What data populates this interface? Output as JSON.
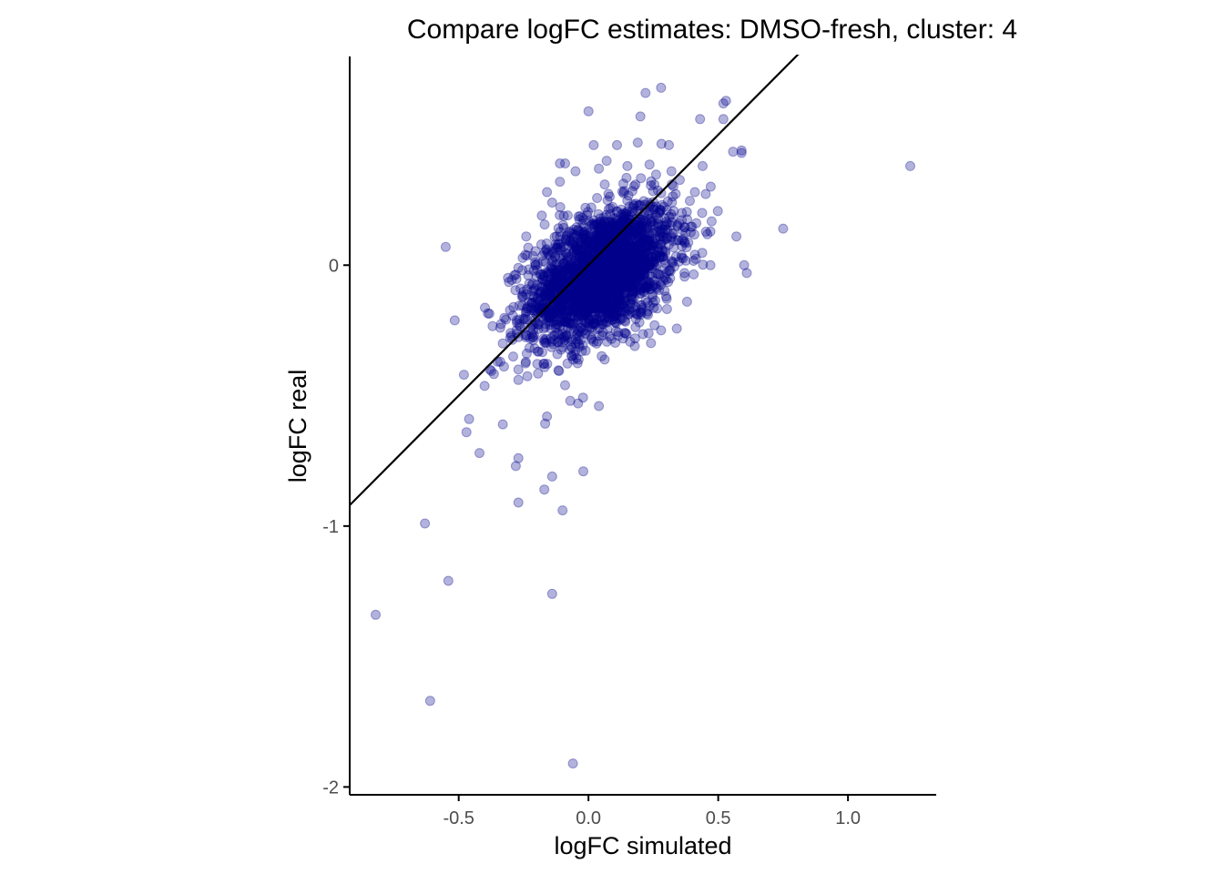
{
  "chart_data": {
    "type": "scatter",
    "title": "Compare logFC estimates: DMSO-fresh, cluster: 4",
    "xlabel": "logFC simulated",
    "ylabel": "logFC real",
    "xlim": [
      -0.92,
      1.34
    ],
    "ylim": [
      -2.03,
      0.8
    ],
    "x_ticks": [
      {
        "value": -0.5,
        "label": "-0.5"
      },
      {
        "value": 0.0,
        "label": "0.0"
      },
      {
        "value": 0.5,
        "label": "0.5"
      },
      {
        "value": 1.0,
        "label": "1.0"
      }
    ],
    "y_ticks": [
      {
        "value": -2,
        "label": "-2"
      },
      {
        "value": -1,
        "label": "-1"
      },
      {
        "value": 0,
        "label": "0"
      }
    ],
    "grid": false,
    "reference_line": {
      "type": "identity",
      "slope": 1,
      "intercept": 0
    },
    "point_color": "#00008B",
    "point_alpha": 0.3,
    "line_color": "#000000",
    "dense_cluster": {
      "center": [
        0.05,
        -0.03
      ],
      "sd": [
        0.14,
        0.13
      ],
      "correlation": 0.45,
      "n": 2500
    },
    "points": [
      [
        1.24,
        0.38
      ],
      [
        0.75,
        0.14
      ],
      [
        0.59,
        0.44
      ],
      [
        0.59,
        0.43
      ],
      [
        0.52,
        0.62
      ],
      [
        0.53,
        0.63
      ],
      [
        0.52,
        0.56
      ],
      [
        0.43,
        0.56
      ],
      [
        0.6,
        0.0
      ],
      [
        0.61,
        -0.03
      ],
      [
        0.57,
        0.11
      ],
      [
        0.47,
        0.0
      ],
      [
        0.38,
        -0.14
      ],
      [
        0.28,
        0.68
      ],
      [
        0.22,
        0.66
      ],
      [
        0.2,
        0.57
      ],
      [
        0.0,
        0.59
      ],
      [
        0.31,
        0.46
      ],
      [
        0.02,
        0.46
      ],
      [
        0.11,
        0.46
      ],
      [
        0.19,
        0.47
      ],
      [
        -0.09,
        0.39
      ],
      [
        -0.55,
        0.07
      ],
      [
        -0.48,
        -0.42
      ],
      [
        -0.46,
        -0.59
      ],
      [
        -0.47,
        -0.64
      ],
      [
        -0.42,
        -0.72
      ],
      [
        -0.33,
        -0.61
      ],
      [
        -0.28,
        -0.77
      ],
      [
        -0.27,
        -0.74
      ],
      [
        -0.27,
        -0.91
      ],
      [
        -0.17,
        -0.86
      ],
      [
        -0.14,
        -0.81
      ],
      [
        -0.1,
        -0.94
      ],
      [
        -0.02,
        -0.79
      ],
      [
        -0.16,
        -0.58
      ],
      [
        -0.63,
        -0.99
      ],
      [
        -0.54,
        -1.21
      ],
      [
        -0.82,
        -1.34
      ],
      [
        -0.61,
        -1.67
      ],
      [
        -0.14,
        -1.26
      ],
      [
        -0.06,
        -1.91
      ],
      [
        -0.04,
        -0.53
      ],
      [
        0.04,
        -0.54
      ],
      [
        -0.07,
        -0.52
      ],
      [
        -0.09,
        -0.46
      ],
      [
        -0.38,
        -0.4
      ],
      [
        -0.34,
        -0.37
      ],
      [
        -0.35,
        -0.37
      ],
      [
        -0.27,
        -0.44
      ],
      [
        -0.27,
        -0.4
      ],
      [
        -0.33,
        -0.3
      ],
      [
        -0.29,
        -0.35
      ],
      [
        -0.34,
        -0.24
      ],
      [
        -0.3,
        -0.26
      ],
      [
        0.14,
        -0.26
      ],
      [
        0.28,
        -0.25
      ],
      [
        0.19,
        -0.19
      ],
      [
        0.37,
        -0.03
      ],
      [
        0.41,
        0.04
      ],
      [
        0.36,
        0.2
      ],
      [
        0.41,
        0.28
      ],
      [
        0.35,
        0.16
      ],
      [
        0.44,
        0.38
      ],
      [
        0.32,
        0.36
      ],
      [
        -0.24,
        0.11
      ],
      [
        -0.18,
        0.19
      ],
      [
        -0.14,
        0.24
      ],
      [
        -0.16,
        0.28
      ],
      [
        -0.11,
        0.32
      ],
      [
        -0.11,
        0.39
      ],
      [
        -0.05,
        0.36
      ],
      [
        0.04,
        0.37
      ],
      [
        0.07,
        0.4
      ],
      [
        0.15,
        0.38
      ]
    ]
  }
}
